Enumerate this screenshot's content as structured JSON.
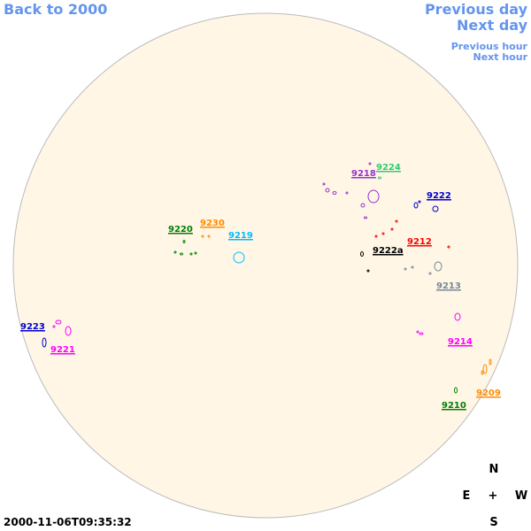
{
  "navigation": {
    "back": "Back to 2000",
    "previous_day": "Previous day",
    "next_day": "Next day",
    "previous_hour": "Previous hour",
    "next_hour": "Next hour"
  },
  "timestamp": "2000-11-06T09:35:32",
  "compass": {
    "north": "N",
    "east": "E",
    "center": "+",
    "west": "W",
    "south": "S"
  },
  "regions": [
    {
      "label": "9224",
      "color": "#2ecc71"
    },
    {
      "label": "9218",
      "color": "#9932cc"
    },
    {
      "label": "9222",
      "color": "#0000cd"
    },
    {
      "label": "9220",
      "color": "#008000"
    },
    {
      "label": "9230",
      "color": "#ff8c00"
    },
    {
      "label": "9219",
      "color": "#00bfff"
    },
    {
      "label": "9212",
      "color": "#ff0000"
    },
    {
      "label": "9222a",
      "color": "#000000"
    },
    {
      "label": "9213",
      "color": "#778899"
    },
    {
      "label": "9223",
      "color": "#0000cd"
    },
    {
      "label": "9221",
      "color": "#ff00ff"
    },
    {
      "label": "9214",
      "color": "#ff00ff"
    },
    {
      "label": "9209",
      "color": "#ff8c00"
    },
    {
      "label": "9210",
      "color": "#008000"
    }
  ]
}
